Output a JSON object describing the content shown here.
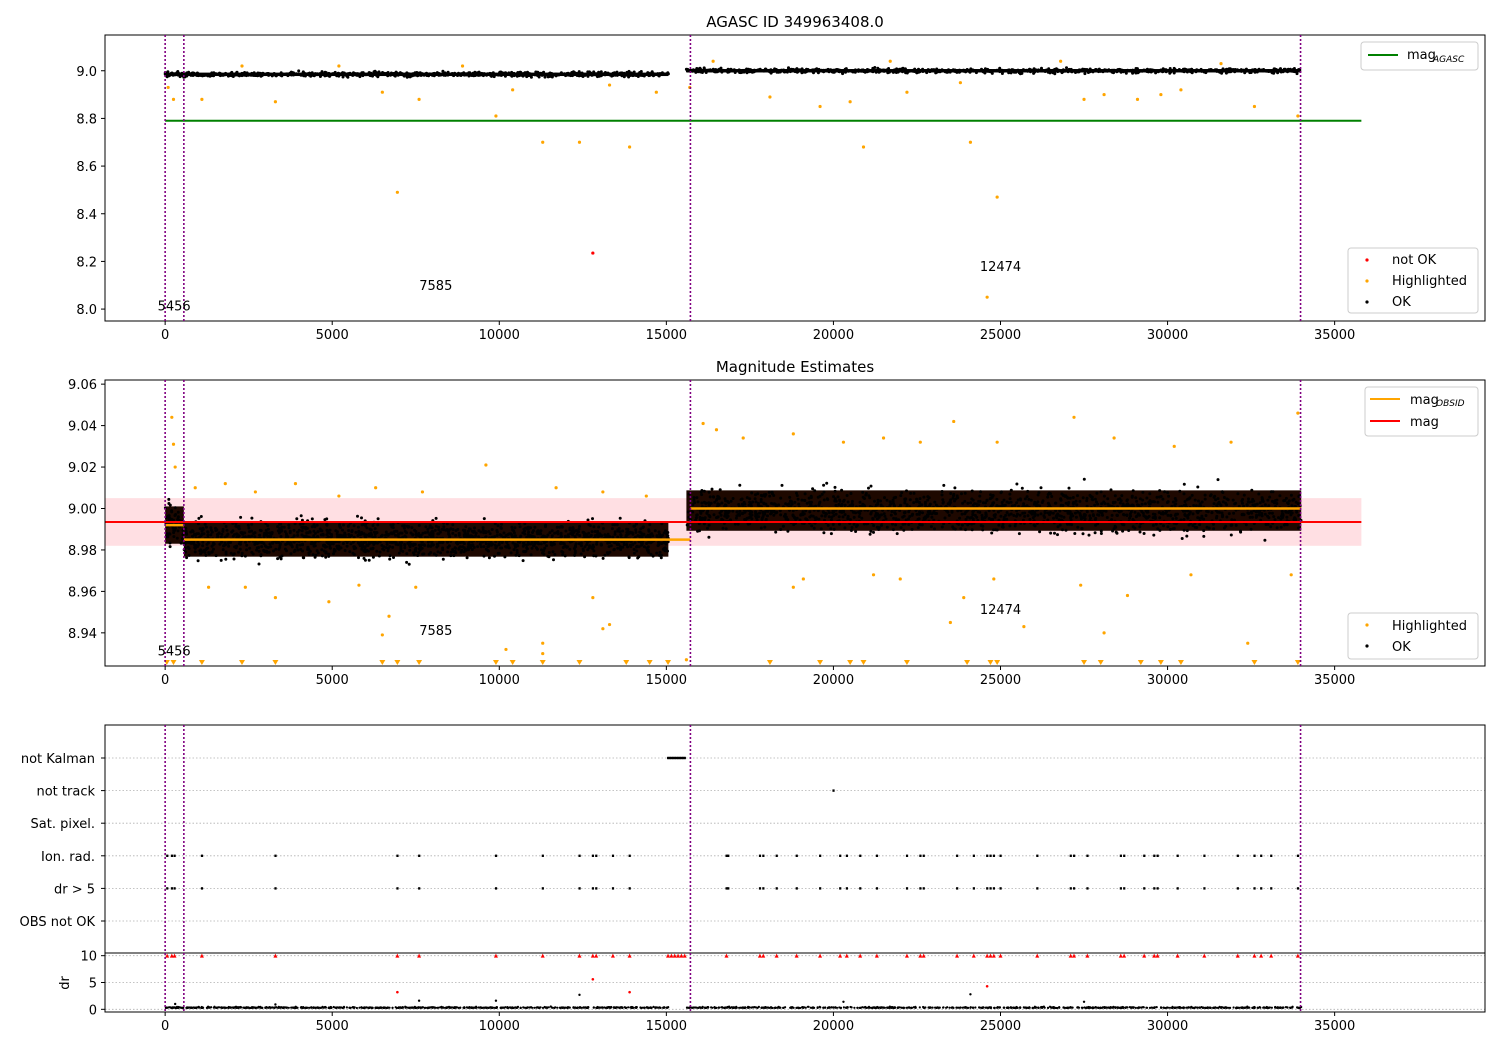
{
  "chart_data": [
    {
      "type": "scatter",
      "title": "AGASC ID 349963408.0",
      "xlim": [
        -1800,
        39500
      ],
      "ylim": [
        7.95,
        9.15
      ],
      "xticks": [
        0,
        5000,
        10000,
        15000,
        20000,
        25000,
        30000,
        35000
      ],
      "yticks": [
        8.0,
        8.2,
        8.4,
        8.6,
        8.8,
        9.0
      ],
      "ytick_labels": [
        "8.0",
        "8.2",
        "8.4",
        "8.6",
        "8.8",
        "9.0"
      ],
      "obsid_boundaries": [
        0,
        560,
        15720,
        33980
      ],
      "obsid_labels": [
        {
          "text": "5456",
          "x": 270,
          "y": 7.995
        },
        {
          "text": "7585",
          "x": 8100,
          "y": 8.08
        },
        {
          "text": "12474",
          "x": 25000,
          "y": 8.16
        }
      ],
      "ok_bands": [
        {
          "x0": 0,
          "x1": 15060,
          "center": 8.985,
          "spread": 0.012
        },
        {
          "x0": 15600,
          "x1": 34000,
          "center": 9.0,
          "spread": 0.012
        }
      ],
      "mag_agasc": {
        "value": 8.79,
        "x0": 0,
        "x1": 35800,
        "color": "#008000"
      },
      "highlighted_points": [
        [
          90,
          8.93
        ],
        [
          250,
          8.88
        ],
        [
          1100,
          8.88
        ],
        [
          3300,
          8.87
        ],
        [
          6500,
          8.91
        ],
        [
          7600,
          8.88
        ],
        [
          9900,
          8.81
        ],
        [
          10400,
          8.92
        ],
        [
          11300,
          8.7
        ],
        [
          12400,
          8.7
        ],
        [
          13300,
          8.94
        ],
        [
          13900,
          8.68
        ],
        [
          14700,
          8.91
        ],
        [
          6950,
          8.49
        ],
        [
          15700,
          8.93
        ],
        [
          18100,
          8.89
        ],
        [
          19600,
          8.85
        ],
        [
          20500,
          8.87
        ],
        [
          20900,
          8.68
        ],
        [
          22200,
          8.91
        ],
        [
          23800,
          8.95
        ],
        [
          24100,
          8.7
        ],
        [
          24900,
          8.47
        ],
        [
          24600,
          8.05
        ],
        [
          27500,
          8.88
        ],
        [
          28100,
          8.9
        ],
        [
          29100,
          8.88
        ],
        [
          29800,
          8.9
        ],
        [
          30400,
          8.92
        ],
        [
          32600,
          8.85
        ],
        [
          33900,
          8.81
        ],
        [
          2300,
          9.02
        ],
        [
          5200,
          9.02
        ],
        [
          8900,
          9.02
        ],
        [
          16400,
          9.04
        ],
        [
          21700,
          9.04
        ],
        [
          26800,
          9.04
        ],
        [
          31600,
          9.03
        ]
      ],
      "not_ok_points": [
        [
          12800,
          8.235
        ]
      ],
      "legend_top": [
        {
          "label": "mag",
          "sub": "AGASC",
          "color": "#008000"
        }
      ],
      "legend_bottom": [
        {
          "label": "not OK",
          "color": "#ff0000"
        },
        {
          "label": "Highlighted",
          "color": "#ffa500"
        },
        {
          "label": "OK",
          "color": "#000000"
        }
      ]
    },
    {
      "type": "scatter",
      "title": "Magnitude Estimates",
      "xlim": [
        -1800,
        39500
      ],
      "ylim": [
        8.924,
        9.062
      ],
      "xticks": [
        0,
        5000,
        10000,
        15000,
        20000,
        25000,
        30000,
        35000
      ],
      "yticks": [
        8.94,
        8.96,
        8.98,
        9.0,
        9.02,
        9.04,
        9.06
      ],
      "ytick_labels": [
        "8.94",
        "8.96",
        "8.98",
        "9.00",
        "9.02",
        "9.04",
        "9.06"
      ],
      "obsid_boundaries": [
        0,
        560,
        15720,
        33980
      ],
      "obsid_labels": [
        {
          "text": "5456",
          "x": 270,
          "y": 8.929
        },
        {
          "text": "7585",
          "x": 8100,
          "y": 8.939
        },
        {
          "text": "12474",
          "x": 25000,
          "y": 8.949
        }
      ],
      "mag_band": {
        "center": 8.9935,
        "lo": 8.982,
        "hi": 9.005,
        "x0": -1800,
        "x1": 35800
      },
      "mag_line": {
        "value": 8.9935,
        "x0": -1800,
        "x1": 35800,
        "color": "#ff0000"
      },
      "mag_obsid_segments": [
        {
          "x0": 0,
          "x1": 560,
          "value": 8.992
        },
        {
          "x0": 560,
          "x1": 15720,
          "value": 8.985
        },
        {
          "x0": 15720,
          "x1": 34000,
          "value": 9.0
        }
      ],
      "ok_bands": [
        {
          "x0": 0,
          "x1": 560,
          "center": 8.992,
          "spread": 0.012
        },
        {
          "x0": 560,
          "x1": 15060,
          "center": 8.985,
          "spread": 0.011
        },
        {
          "x0": 15600,
          "x1": 34000,
          "center": 8.999,
          "spread": 0.013
        }
      ],
      "highlighted_points": [
        [
          200,
          9.044
        ],
        [
          250,
          9.031
        ],
        [
          300,
          9.02
        ],
        [
          900,
          9.01
        ],
        [
          1800,
          9.012
        ],
        [
          2700,
          9.008
        ],
        [
          3900,
          9.012
        ],
        [
          5200,
          9.006
        ],
        [
          6300,
          9.01
        ],
        [
          7700,
          9.008
        ],
        [
          9600,
          9.021
        ],
        [
          11700,
          9.01
        ],
        [
          13100,
          9.008
        ],
        [
          14400,
          9.006
        ],
        [
          16100,
          9.041
        ],
        [
          16500,
          9.038
        ],
        [
          17300,
          9.034
        ],
        [
          18800,
          9.036
        ],
        [
          20300,
          9.032
        ],
        [
          21500,
          9.034
        ],
        [
          22600,
          9.032
        ],
        [
          23600,
          9.042
        ],
        [
          24900,
          9.032
        ],
        [
          27200,
          9.044
        ],
        [
          28400,
          9.034
        ],
        [
          30200,
          9.03
        ],
        [
          31900,
          9.032
        ],
        [
          33900,
          9.046
        ],
        [
          1300,
          8.962
        ],
        [
          2400,
          8.962
        ],
        [
          3300,
          8.957
        ],
        [
          4900,
          8.955
        ],
        [
          5800,
          8.963
        ],
        [
          6700,
          8.948
        ],
        [
          6500,
          8.939
        ],
        [
          7500,
          8.962
        ],
        [
          10200,
          8.932
        ],
        [
          11300,
          8.935
        ],
        [
          11300,
          8.93
        ],
        [
          12800,
          8.957
        ],
        [
          13100,
          8.942
        ],
        [
          13300,
          8.944
        ],
        [
          15600,
          8.927
        ],
        [
          18800,
          8.962
        ],
        [
          19100,
          8.966
        ],
        [
          21200,
          8.968
        ],
        [
          22000,
          8.966
        ],
        [
          23500,
          8.945
        ],
        [
          23900,
          8.957
        ],
        [
          24800,
          8.966
        ],
        [
          25700,
          8.943
        ],
        [
          27400,
          8.963
        ],
        [
          28100,
          8.94
        ],
        [
          28800,
          8.958
        ],
        [
          30700,
          8.968
        ],
        [
          32400,
          8.935
        ],
        [
          33700,
          8.968
        ]
      ],
      "lower_limit_markers": [
        50,
        250,
        1100,
        2300,
        3300,
        6500,
        6950,
        7600,
        9900,
        10400,
        11300,
        12400,
        13800,
        14500,
        15050,
        18100,
        19600,
        20500,
        20900,
        22200,
        24000,
        24700,
        24900,
        27500,
        28000,
        29200,
        29800,
        30400,
        32600,
        33900
      ],
      "legend_top": [
        {
          "label": "mag",
          "sub": "OBSID",
          "color": "#ffa500"
        },
        {
          "label": "mag",
          "sub": "",
          "color": "#ff0000"
        }
      ],
      "legend_bottom": [
        {
          "label": "Highlighted",
          "color": "#ffa500"
        },
        {
          "label": "OK",
          "color": "#000000"
        }
      ]
    },
    {
      "type": "scatter",
      "title": "",
      "xlim": [
        -1800,
        39500
      ],
      "categories": [
        "OBS not OK",
        "dr > 5",
        "Ion. rad.",
        "Sat. pixel.",
        "not track",
        "not Kalman"
      ],
      "obsid_boundaries": [
        0,
        560,
        15720,
        33980
      ],
      "flag_points": {
        "not Kalman": [
          15050,
          15100,
          15150,
          15200,
          15250,
          15300,
          15350,
          15400,
          15450,
          15500,
          15550
        ],
        "not track": [
          20000
        ],
        "Sat. pixel.": [],
        "Ion. rad.": [
          60,
          200,
          280,
          1100,
          3300,
          6950,
          7600,
          9900,
          11300,
          12400,
          12800,
          12900,
          13400,
          13900,
          16800,
          16850,
          17800,
          17900,
          18300,
          18900,
          19600,
          20200,
          20400,
          20800,
          21300,
          22200,
          22600,
          22700,
          23700,
          24200,
          24600,
          24700,
          24800,
          25000,
          26100,
          27100,
          27200,
          27600,
          28600,
          28700,
          29300,
          29600,
          29700,
          30300,
          31100,
          32100,
          32600,
          32800,
          33100,
          33900
        ],
        "dr > 5": [
          60,
          200,
          280,
          1100,
          3300,
          6950,
          7600,
          9900,
          11300,
          12400,
          12800,
          12900,
          13400,
          13900,
          16800,
          16850,
          17800,
          17900,
          18300,
          18900,
          19600,
          20200,
          20400,
          20800,
          21300,
          22200,
          22600,
          22700,
          23700,
          24200,
          24600,
          24700,
          24800,
          25000,
          26100,
          27100,
          27200,
          27600,
          28600,
          28700,
          29300,
          29600,
          29700,
          30300,
          31100,
          32100,
          32600,
          32800,
          33100,
          33900
        ],
        "OBS not OK": []
      }
    },
    {
      "type": "scatter",
      "title": "",
      "ylabel": "dr",
      "xlim": [
        -1800,
        39500
      ],
      "ylim": [
        -0.5,
        10.5
      ],
      "xticks": [
        0,
        5000,
        10000,
        15000,
        20000,
        25000,
        30000,
        35000
      ],
      "yticks": [
        0,
        5,
        10
      ],
      "ytick_labels": [
        "0",
        "5",
        "10"
      ],
      "obsid_boundaries": [
        0,
        560,
        15720,
        33980
      ],
      "clipped_points": [
        60,
        200,
        280,
        1100,
        3300,
        6950,
        7600,
        9900,
        11300,
        12400,
        12800,
        12900,
        13400,
        13900,
        15050,
        15150,
        15250,
        15350,
        15450,
        15550,
        16800,
        17800,
        17900,
        18300,
        18900,
        19600,
        20200,
        20400,
        20800,
        21300,
        22200,
        22600,
        22700,
        23700,
        24200,
        24600,
        24700,
        24800,
        25000,
        26100,
        27100,
        27200,
        27600,
        28600,
        28700,
        29300,
        29600,
        29700,
        30300,
        31100,
        32100,
        32600,
        32800,
        33100,
        33900
      ],
      "red_points": [
        [
          6950,
          3.2
        ],
        [
          12800,
          5.6
        ],
        [
          13900,
          3.2
        ],
        [
          24600,
          4.3
        ]
      ],
      "black_points": [
        [
          7600,
          1.6
        ],
        [
          9900,
          1.6
        ],
        [
          12400,
          2.7
        ],
        [
          24100,
          2.8
        ],
        [
          20300,
          1.4
        ],
        [
          27500,
          1.4
        ],
        [
          300,
          1.0
        ],
        [
          3300,
          0.9
        ]
      ],
      "baseline": [
        {
          "x0": 0,
          "x1": 15060,
          "center": 0.25
        },
        {
          "x0": 15600,
          "x1": 34000,
          "center": 0.25
        }
      ]
    }
  ]
}
